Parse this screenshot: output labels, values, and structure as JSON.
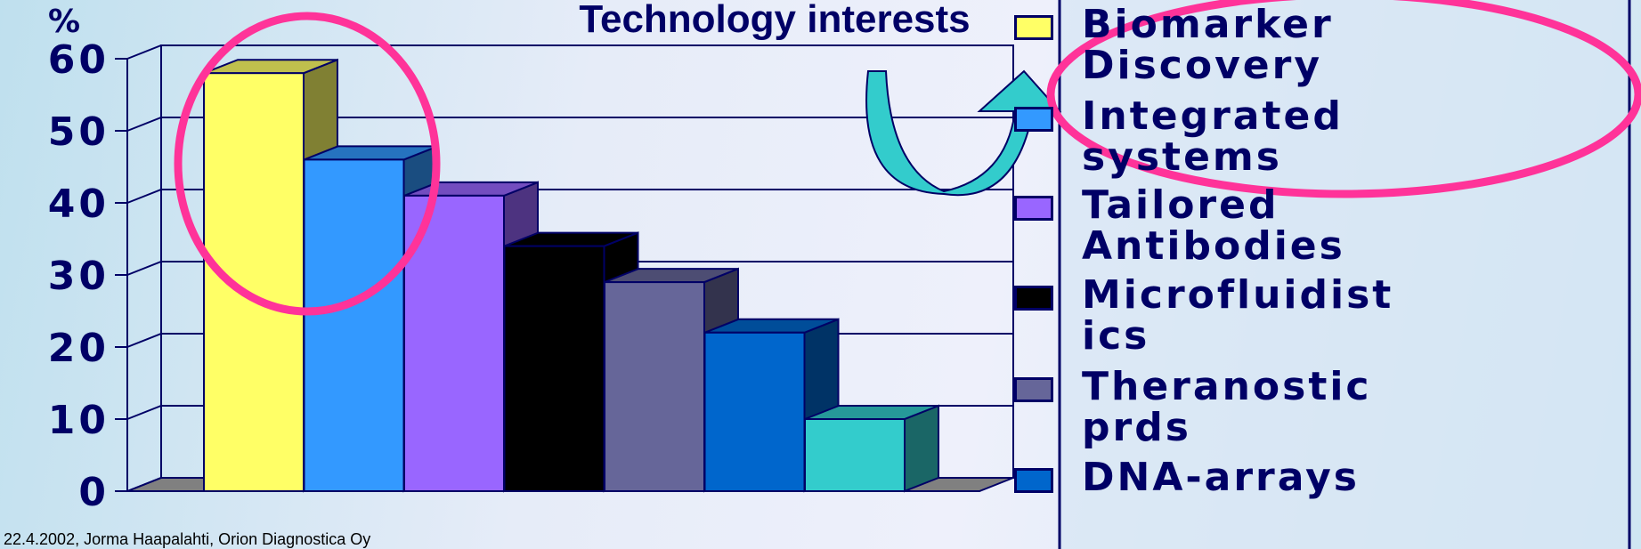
{
  "chart_data": {
    "type": "bar3d",
    "title": "Technology interests",
    "y_label": "%",
    "ylim": [
      0,
      60
    ],
    "yticks": [
      0,
      10,
      20,
      30,
      40,
      50,
      60
    ],
    "grid": true,
    "series": [
      {
        "name": "Biomarker Discovery",
        "color": "#ffff66",
        "values": [
          58
        ]
      },
      {
        "name": "Integrated systems",
        "color": "#3399ff",
        "values": [
          46
        ]
      },
      {
        "name": "Tailored Antibodies",
        "color": "#9966ff",
        "values": [
          41
        ]
      },
      {
        "name": "Microfluidistics",
        "color": "#000000",
        "values": [
          34
        ]
      },
      {
        "name": "Theranostic prds",
        "color": "#666699",
        "values": [
          29
        ]
      },
      {
        "name": "DNA-arrays",
        "color": "#0066cc",
        "values": [
          22
        ]
      },
      {
        "name": null,
        "color": "#33cccc",
        "values": [
          10
        ]
      }
    ],
    "footer": "22.4.2002, Jorma Haapalahti, Orion Diagnostica Oy"
  }
}
